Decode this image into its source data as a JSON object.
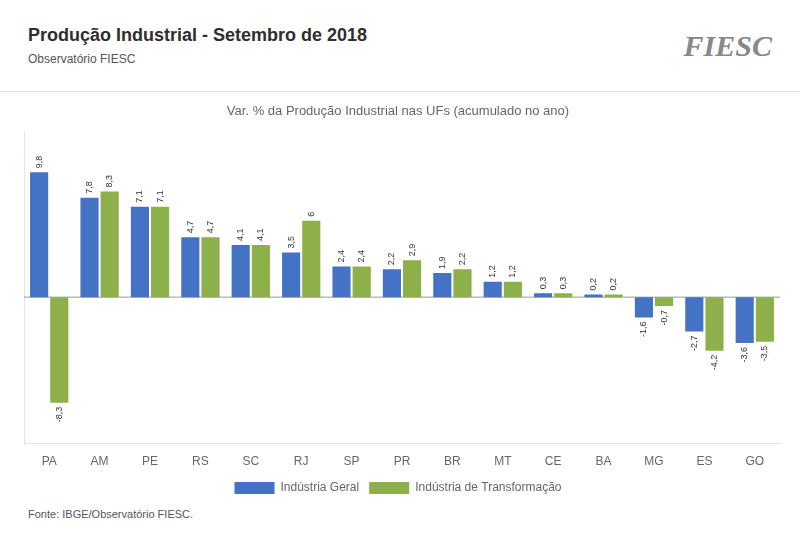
{
  "chart_data": {
    "type": "bar",
    "title": "Var. % da Produção Industrial nas UFs (acumulado no ano)",
    "annotations": [
      "Produção Industrial - Setembro de 2018",
      "Observatório FIESC",
      "FIESC",
      "Fonte: IBGE/Observatório FIESC."
    ],
    "categories": [
      "PA",
      "AM",
      "PE",
      "RS",
      "SC",
      "RJ",
      "SP",
      "PR",
      "BR",
      "MT",
      "CE",
      "BA",
      "MG",
      "ES",
      "GO"
    ],
    "series": [
      {
        "name": "Indústria Geral",
        "color": "#4472C4",
        "values": [
          9.8,
          7.8,
          7.1,
          4.7,
          4.1,
          3.5,
          2.4,
          2.2,
          1.9,
          1.2,
          0.3,
          0.2,
          -1.6,
          -2.7,
          -3.6
        ],
        "value_labels": [
          "9,8",
          "7,8",
          "7,1",
          "4,7",
          "4,1",
          "3,5",
          "2,4",
          "2,2",
          "1,9",
          "1,2",
          "0,3",
          "0,2",
          "-1,6",
          "-2,7",
          "-3,6"
        ]
      },
      {
        "name": "Indústria de Transformação",
        "color": "#8DB04B",
        "values": [
          -8.3,
          8.3,
          7.1,
          4.7,
          4.1,
          6.0,
          2.4,
          2.9,
          2.2,
          1.2,
          0.3,
          0.2,
          -0.7,
          -4.2,
          -3.5
        ],
        "value_labels": [
          "-8,3",
          "8,3",
          "7,1",
          "4,7",
          "4,1",
          "6",
          "2,4",
          "2,9",
          "2,2",
          "1,2",
          "0,3",
          "0,2",
          "-0,7",
          "-4,2",
          "-3,5"
        ]
      }
    ],
    "ylim": [
      -11.5,
      13.0
    ],
    "grid": false,
    "legend": "bottom",
    "data_labels": true,
    "tick_labels": "x"
  }
}
